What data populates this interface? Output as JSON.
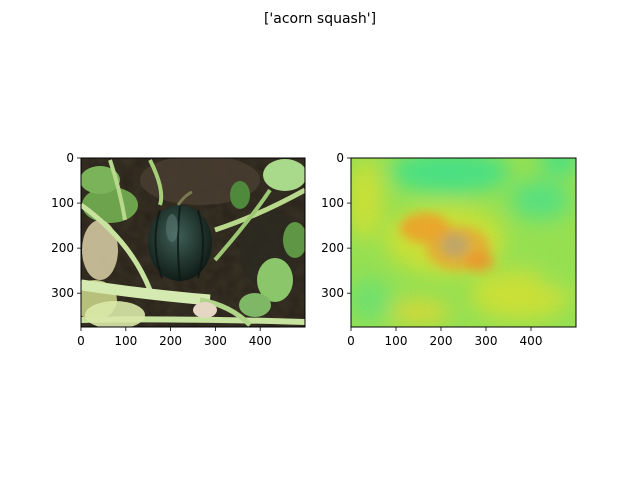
{
  "figure": {
    "title": "['acorn squash']"
  },
  "chart_data": [
    {
      "type": "heatmap",
      "title": "",
      "xlabel": "",
      "ylabel": "",
      "xlim": [
        0,
        500
      ],
      "ylim": [
        375,
        0
      ],
      "xticks": [
        0,
        100,
        200,
        300,
        400
      ],
      "yticks": [
        0,
        100,
        200,
        300
      ],
      "grid": false,
      "image": "photo of a dark green acorn squash among leaves and stems",
      "colors": {
        "soil": "#3b3326",
        "squash": "#243a35",
        "leaf": "#8cc66a",
        "stem": "#b8d98c"
      }
    },
    {
      "type": "heatmap",
      "title": "",
      "xlabel": "",
      "ylabel": "",
      "xlim": [
        0,
        500
      ],
      "ylim": [
        375,
        0
      ],
      "xticks": [
        0,
        100,
        200,
        300,
        400
      ],
      "yticks": [
        0,
        100,
        200,
        300
      ],
      "grid": false,
      "image": "saliency / attribution map",
      "colors": {
        "low": "#3ee890",
        "mid": "#c8e83c",
        "high": "#f0902c",
        "base": "#8fe85a"
      }
    }
  ]
}
